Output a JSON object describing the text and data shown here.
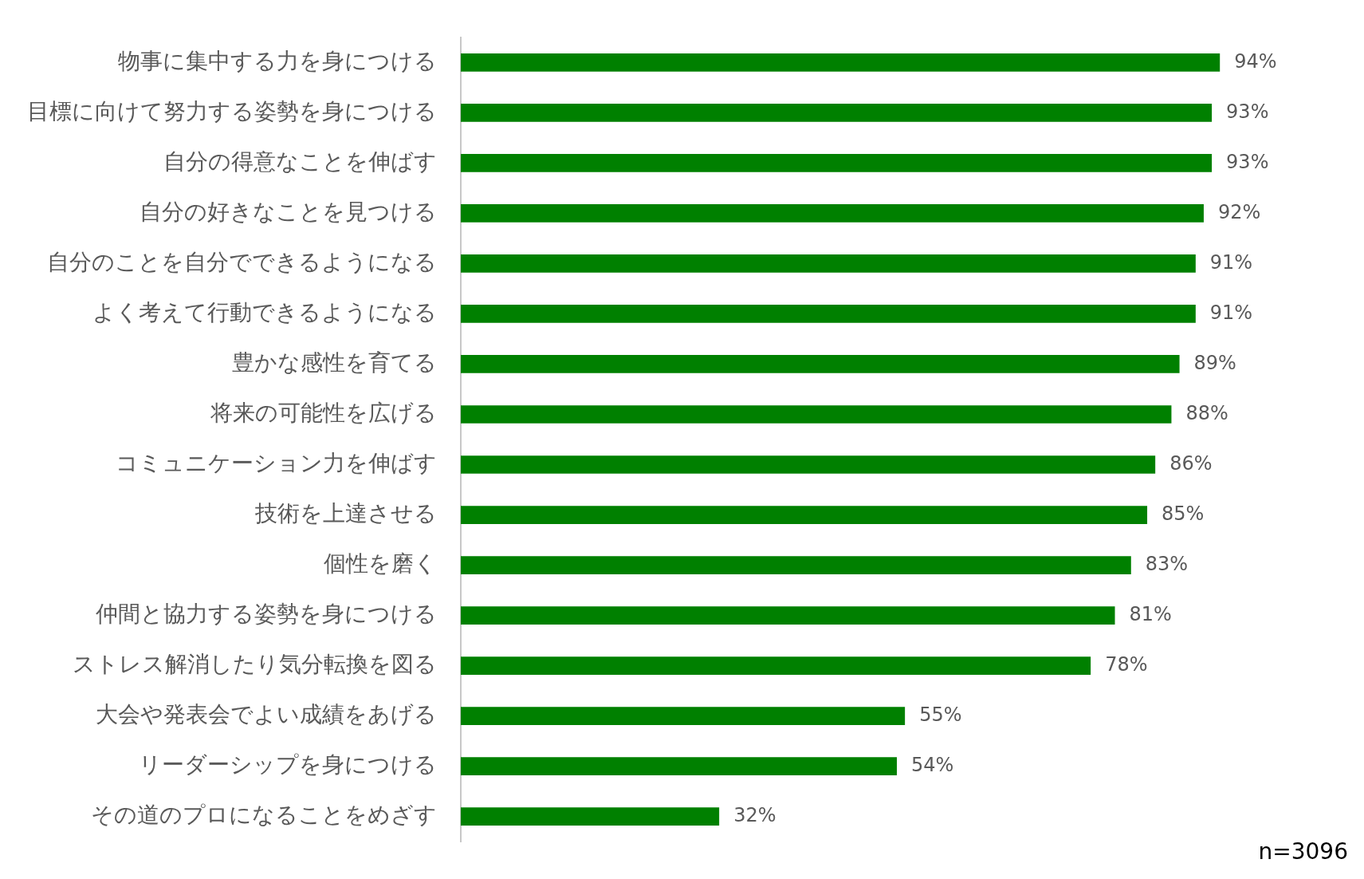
{
  "chart_data": {
    "type": "bar",
    "orientation": "horizontal",
    "categories": [
      "物事に集中する力を身につける",
      "目標に向けて努力する姿勢を身につける",
      "自分の得意なことを伸ばす",
      "自分の好きなことを見つける",
      "自分のことを自分でできるようになる",
      "よく考えて行動できるようになる",
      "豊かな感性を育てる",
      "将来の可能性を広げる",
      "コミュニケーション力を伸ばす",
      "技術を上達させる",
      "個性を磨く",
      "仲間と協力する姿勢を身につける",
      "ストレス解消したり気分転換を図る",
      "大会や発表会でよい成績をあげる",
      "リーダーシップを身につける",
      "その道のプロになることをめざす"
    ],
    "values": [
      94,
      93,
      93,
      92,
      91,
      91,
      89,
      88,
      86,
      85,
      83,
      81,
      78,
      55,
      54,
      32
    ],
    "value_labels": [
      "94%",
      "93%",
      "93%",
      "92%",
      "91%",
      "91%",
      "89%",
      "88%",
      "86%",
      "85%",
      "83%",
      "81%",
      "78%",
      "55%",
      "54%",
      "32%"
    ],
    "color": "#008000",
    "annotations": [
      "n=3096"
    ],
    "grid": false,
    "legend": false
  }
}
